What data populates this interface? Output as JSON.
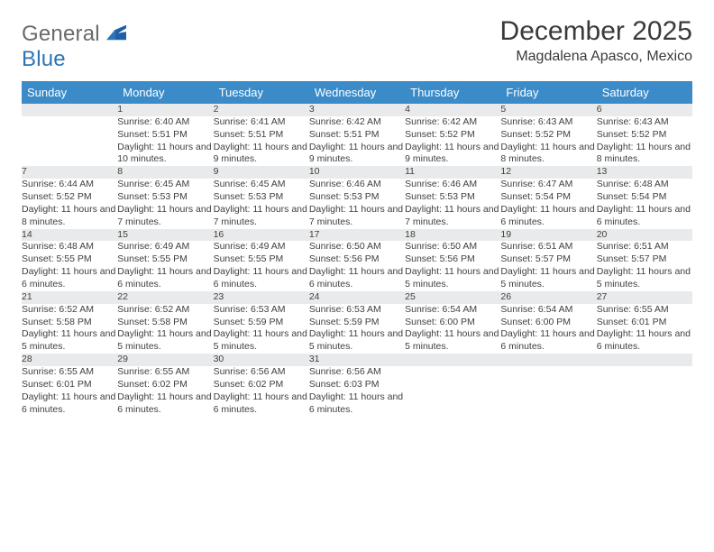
{
  "brand": {
    "part1": "General",
    "part2": "Blue"
  },
  "title": "December 2025",
  "location": "Magdalena Apasco, Mexico",
  "colors": {
    "header_bg": "#3b8bc9",
    "header_text": "#ffffff",
    "daynum_bg": "#e9eaeb",
    "row_divider": "#2e75b6",
    "body_text": "#3f3f3f",
    "brand_gray": "#6a6a6a",
    "brand_blue": "#2e75b6"
  },
  "day_headers": [
    "Sunday",
    "Monday",
    "Tuesday",
    "Wednesday",
    "Thursday",
    "Friday",
    "Saturday"
  ],
  "weeks": [
    [
      {
        "num": "",
        "lines": []
      },
      {
        "num": "1",
        "lines": [
          "Sunrise: 6:40 AM",
          "Sunset: 5:51 PM",
          "Daylight: 11 hours and 10 minutes."
        ]
      },
      {
        "num": "2",
        "lines": [
          "Sunrise: 6:41 AM",
          "Sunset: 5:51 PM",
          "Daylight: 11 hours and 9 minutes."
        ]
      },
      {
        "num": "3",
        "lines": [
          "Sunrise: 6:42 AM",
          "Sunset: 5:51 PM",
          "Daylight: 11 hours and 9 minutes."
        ]
      },
      {
        "num": "4",
        "lines": [
          "Sunrise: 6:42 AM",
          "Sunset: 5:52 PM",
          "Daylight: 11 hours and 9 minutes."
        ]
      },
      {
        "num": "5",
        "lines": [
          "Sunrise: 6:43 AM",
          "Sunset: 5:52 PM",
          "Daylight: 11 hours and 8 minutes."
        ]
      },
      {
        "num": "6",
        "lines": [
          "Sunrise: 6:43 AM",
          "Sunset: 5:52 PM",
          "Daylight: 11 hours and 8 minutes."
        ]
      }
    ],
    [
      {
        "num": "7",
        "lines": [
          "Sunrise: 6:44 AM",
          "Sunset: 5:52 PM",
          "Daylight: 11 hours and 8 minutes."
        ]
      },
      {
        "num": "8",
        "lines": [
          "Sunrise: 6:45 AM",
          "Sunset: 5:53 PM",
          "Daylight: 11 hours and 7 minutes."
        ]
      },
      {
        "num": "9",
        "lines": [
          "Sunrise: 6:45 AM",
          "Sunset: 5:53 PM",
          "Daylight: 11 hours and 7 minutes."
        ]
      },
      {
        "num": "10",
        "lines": [
          "Sunrise: 6:46 AM",
          "Sunset: 5:53 PM",
          "Daylight: 11 hours and 7 minutes."
        ]
      },
      {
        "num": "11",
        "lines": [
          "Sunrise: 6:46 AM",
          "Sunset: 5:53 PM",
          "Daylight: 11 hours and 7 minutes."
        ]
      },
      {
        "num": "12",
        "lines": [
          "Sunrise: 6:47 AM",
          "Sunset: 5:54 PM",
          "Daylight: 11 hours and 6 minutes."
        ]
      },
      {
        "num": "13",
        "lines": [
          "Sunrise: 6:48 AM",
          "Sunset: 5:54 PM",
          "Daylight: 11 hours and 6 minutes."
        ]
      }
    ],
    [
      {
        "num": "14",
        "lines": [
          "Sunrise: 6:48 AM",
          "Sunset: 5:55 PM",
          "Daylight: 11 hours and 6 minutes."
        ]
      },
      {
        "num": "15",
        "lines": [
          "Sunrise: 6:49 AM",
          "Sunset: 5:55 PM",
          "Daylight: 11 hours and 6 minutes."
        ]
      },
      {
        "num": "16",
        "lines": [
          "Sunrise: 6:49 AM",
          "Sunset: 5:55 PM",
          "Daylight: 11 hours and 6 minutes."
        ]
      },
      {
        "num": "17",
        "lines": [
          "Sunrise: 6:50 AM",
          "Sunset: 5:56 PM",
          "Daylight: 11 hours and 6 minutes."
        ]
      },
      {
        "num": "18",
        "lines": [
          "Sunrise: 6:50 AM",
          "Sunset: 5:56 PM",
          "Daylight: 11 hours and 5 minutes."
        ]
      },
      {
        "num": "19",
        "lines": [
          "Sunrise: 6:51 AM",
          "Sunset: 5:57 PM",
          "Daylight: 11 hours and 5 minutes."
        ]
      },
      {
        "num": "20",
        "lines": [
          "Sunrise: 6:51 AM",
          "Sunset: 5:57 PM",
          "Daylight: 11 hours and 5 minutes."
        ]
      }
    ],
    [
      {
        "num": "21",
        "lines": [
          "Sunrise: 6:52 AM",
          "Sunset: 5:58 PM",
          "Daylight: 11 hours and 5 minutes."
        ]
      },
      {
        "num": "22",
        "lines": [
          "Sunrise: 6:52 AM",
          "Sunset: 5:58 PM",
          "Daylight: 11 hours and 5 minutes."
        ]
      },
      {
        "num": "23",
        "lines": [
          "Sunrise: 6:53 AM",
          "Sunset: 5:59 PM",
          "Daylight: 11 hours and 5 minutes."
        ]
      },
      {
        "num": "24",
        "lines": [
          "Sunrise: 6:53 AM",
          "Sunset: 5:59 PM",
          "Daylight: 11 hours and 5 minutes."
        ]
      },
      {
        "num": "25",
        "lines": [
          "Sunrise: 6:54 AM",
          "Sunset: 6:00 PM",
          "Daylight: 11 hours and 5 minutes."
        ]
      },
      {
        "num": "26",
        "lines": [
          "Sunrise: 6:54 AM",
          "Sunset: 6:00 PM",
          "Daylight: 11 hours and 6 minutes."
        ]
      },
      {
        "num": "27",
        "lines": [
          "Sunrise: 6:55 AM",
          "Sunset: 6:01 PM",
          "Daylight: 11 hours and 6 minutes."
        ]
      }
    ],
    [
      {
        "num": "28",
        "lines": [
          "Sunrise: 6:55 AM",
          "Sunset: 6:01 PM",
          "Daylight: 11 hours and 6 minutes."
        ]
      },
      {
        "num": "29",
        "lines": [
          "Sunrise: 6:55 AM",
          "Sunset: 6:02 PM",
          "Daylight: 11 hours and 6 minutes."
        ]
      },
      {
        "num": "30",
        "lines": [
          "Sunrise: 6:56 AM",
          "Sunset: 6:02 PM",
          "Daylight: 11 hours and 6 minutes."
        ]
      },
      {
        "num": "31",
        "lines": [
          "Sunrise: 6:56 AM",
          "Sunset: 6:03 PM",
          "Daylight: 11 hours and 6 minutes."
        ]
      },
      {
        "num": "",
        "lines": []
      },
      {
        "num": "",
        "lines": []
      },
      {
        "num": "",
        "lines": []
      }
    ]
  ]
}
